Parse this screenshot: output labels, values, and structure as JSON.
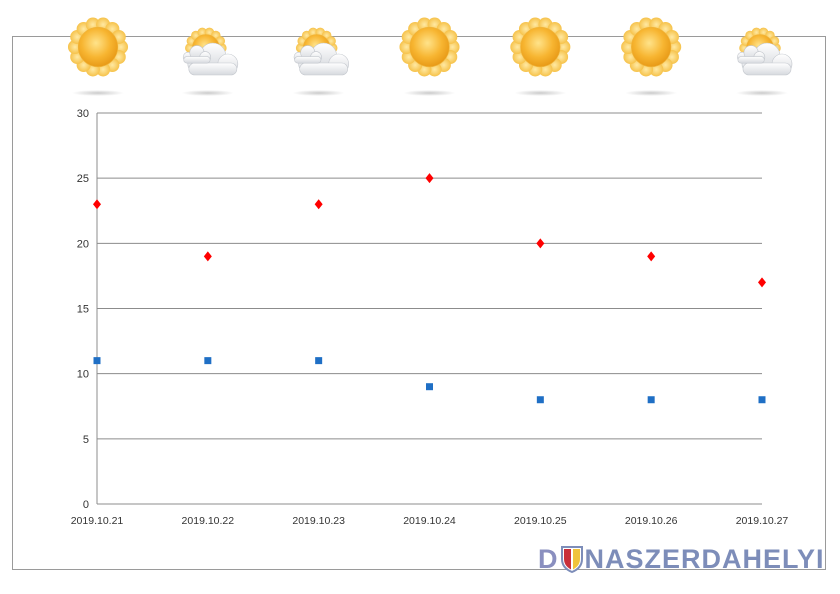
{
  "chart_data": {
    "type": "scatter",
    "categories": [
      "2019.10.21",
      "2019.10.22",
      "2019.10.23",
      "2019.10.24",
      "2019.10.25",
      "2019.10.26",
      "2019.10.27"
    ],
    "weather_icons": [
      "sun-icon",
      "sun-behind-cloud-icon",
      "sun-behind-cloud-icon",
      "sun-icon",
      "sun-icon",
      "sun-icon",
      "sun-behind-cloud-icon"
    ],
    "series": [
      {
        "values": [
          23,
          19,
          23,
          25,
          20,
          19,
          17
        ],
        "color": "#ff0000",
        "marker": "diamond"
      },
      {
        "values": [
          11,
          11,
          11,
          9,
          8,
          8,
          8
        ],
        "color": "#1f6fc5",
        "marker": "square"
      }
    ],
    "ylim": [
      0,
      30
    ],
    "yticks": [
      0,
      5,
      10,
      15,
      20,
      25,
      30
    ],
    "grid": true
  },
  "branding": {
    "logo_part1": "D",
    "logo_part2": "NASZERDAHELYI"
  }
}
